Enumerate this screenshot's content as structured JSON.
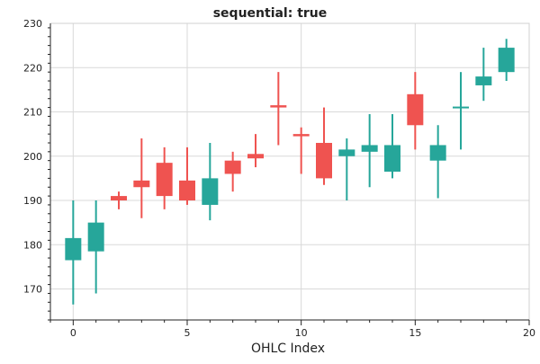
{
  "chart_data": {
    "type": "ohlc-candlestick",
    "title": "sequential: true",
    "xlabel": "OHLC Index",
    "ylabel": "",
    "xlim": [
      -1,
      20
    ],
    "ylim": [
      163,
      230
    ],
    "x_ticks": [
      0,
      5,
      10,
      15,
      20
    ],
    "y_ticks": [
      170,
      180,
      190,
      200,
      210,
      220,
      230
    ],
    "grid": true,
    "colors": {
      "up": "#26a69a",
      "down": "#ef5350"
    },
    "candles": [
      {
        "x": 0,
        "open": 176.5,
        "high": 190.0,
        "low": 166.5,
        "close": 181.5
      },
      {
        "x": 1,
        "open": 178.5,
        "high": 190.0,
        "low": 169.0,
        "close": 185.0
      },
      {
        "x": 2,
        "open": 191.0,
        "high": 192.0,
        "low": 188.0,
        "close": 190.0
      },
      {
        "x": 3,
        "open": 194.5,
        "high": 204.0,
        "low": 186.0,
        "close": 193.0
      },
      {
        "x": 4,
        "open": 198.5,
        "high": 202.0,
        "low": 188.0,
        "close": 191.0
      },
      {
        "x": 5,
        "open": 194.5,
        "high": 202.0,
        "low": 189.0,
        "close": 190.0
      },
      {
        "x": 6,
        "open": 189.0,
        "high": 203.0,
        "low": 185.5,
        "close": 195.0
      },
      {
        "x": 7,
        "open": 199.0,
        "high": 201.0,
        "low": 192.0,
        "close": 196.0
      },
      {
        "x": 8,
        "open": 200.5,
        "high": 205.0,
        "low": 197.5,
        "close": 199.5
      },
      {
        "x": 9,
        "open": 211.5,
        "high": 219.0,
        "low": 202.5,
        "close": 211.0
      },
      {
        "x": 10,
        "open": 205.0,
        "high": 206.5,
        "low": 196.0,
        "close": 204.5
      },
      {
        "x": 11,
        "open": 203.0,
        "high": 211.0,
        "low": 193.5,
        "close": 195.0
      },
      {
        "x": 12,
        "open": 200.0,
        "high": 204.0,
        "low": 190.0,
        "close": 201.5
      },
      {
        "x": 13,
        "open": 201.0,
        "high": 209.5,
        "low": 193.0,
        "close": 202.5
      },
      {
        "x": 14,
        "open": 196.5,
        "high": 209.5,
        "low": 195.0,
        "close": 202.5
      },
      {
        "x": 15,
        "open": 214.0,
        "high": 219.0,
        "low": 201.5,
        "close": 207.0
      },
      {
        "x": 16,
        "open": 199.0,
        "high": 207.0,
        "low": 190.5,
        "close": 202.5
      },
      {
        "x": 17,
        "open": 211.0,
        "high": 219.0,
        "low": 201.5,
        "close": 211.0
      },
      {
        "x": 18,
        "open": 216.0,
        "high": 224.5,
        "low": 212.5,
        "close": 218.0
      },
      {
        "x": 19,
        "open": 219.0,
        "high": 226.5,
        "low": 217.0,
        "close": 224.5
      }
    ]
  }
}
